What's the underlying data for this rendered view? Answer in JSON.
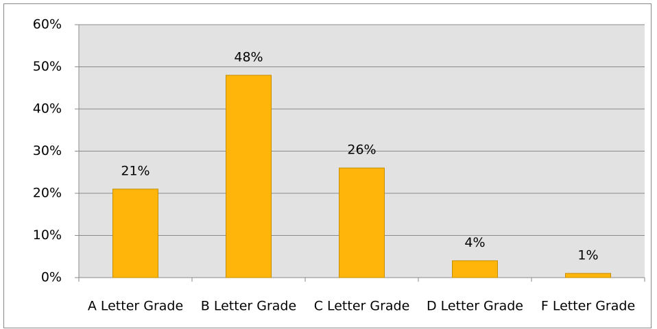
{
  "chart_data": {
    "type": "bar",
    "categories": [
      "A Letter Grade",
      "B Letter Grade",
      "C Letter Grade",
      "D Letter Grade",
      "F Letter Grade"
    ],
    "values": [
      21,
      48,
      26,
      4,
      1
    ],
    "value_labels": [
      "21%",
      "48%",
      "26%",
      "4%",
      "1%"
    ],
    "color": "#FFB50A",
    "ylim": [
      0,
      60
    ],
    "yticks": [
      {
        "value": 0,
        "label": "0%"
      },
      {
        "value": 10,
        "label": "10%"
      },
      {
        "value": 20,
        "label": "20%"
      },
      {
        "value": 30,
        "label": "30%"
      },
      {
        "value": 40,
        "label": "40%"
      },
      {
        "value": 50,
        "label": "50%"
      },
      {
        "value": 60,
        "label": "60%"
      }
    ],
    "grid": true
  }
}
